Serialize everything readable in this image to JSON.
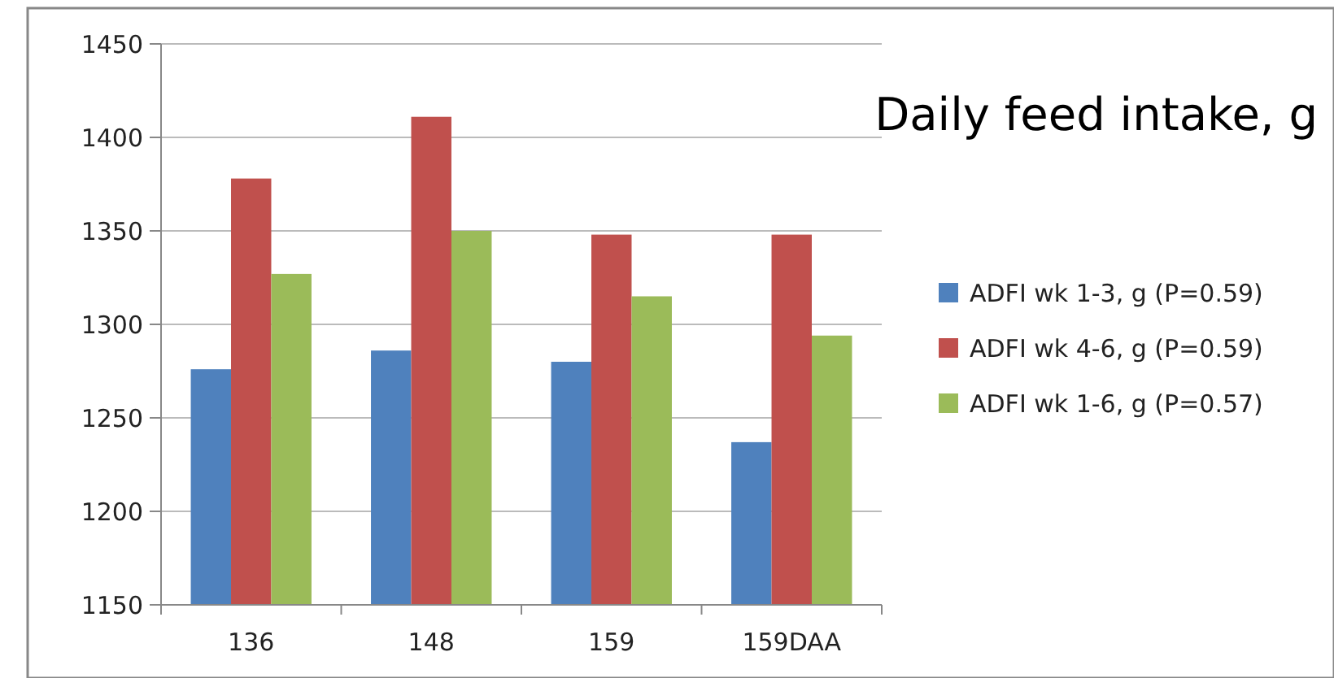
{
  "chart_data": {
    "type": "bar",
    "title": "Daily feed intake, g",
    "categories": [
      "136",
      "148",
      "159",
      "159DAA"
    ],
    "series": [
      {
        "name": "ADFI wk 1-3, g (P=0.59)",
        "color": "#4f81bd",
        "values": [
          1276,
          1286,
          1280,
          1237
        ]
      },
      {
        "name": "ADFI wk 4-6, g (P=0.59)",
        "color": "#c0504d",
        "values": [
          1378,
          1411,
          1348,
          1348
        ]
      },
      {
        "name": "ADFI wk 1-6, g (P=0.57)",
        "color": "#9bbb59",
        "values": [
          1327,
          1350,
          1315,
          1294
        ]
      }
    ],
    "ylim": [
      1150,
      1450
    ],
    "yticks": [
      1150,
      1200,
      1250,
      1300,
      1350,
      1400,
      1450
    ],
    "grid": "y",
    "legend": "right"
  }
}
